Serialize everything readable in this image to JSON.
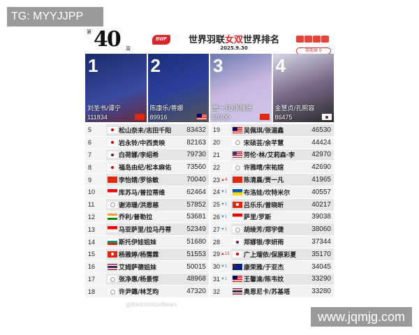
{
  "watermarks": {
    "top_left": "TG: MYYJJPP",
    "bottom_right": "www.jqmjg.com",
    "credit": "@BadmintonNews"
  },
  "header": {
    "week_prefix": "第",
    "week": "40",
    "week_suffix": "周",
    "logo": "BWF",
    "title_pre": "世界羽联",
    "title_em": "女双",
    "title_post": "世界排名",
    "date": "2025.9.30",
    "search_label": "羽毛球"
  },
  "colors": {
    "accent": "#d9262c",
    "up": "#d9262c",
    "down": "#3a8fd0"
  },
  "top4": [
    {
      "rank": "1",
      "names": "刘圣书/谭宁",
      "points": "111834",
      "flag": "CHN",
      "bg": "linear-gradient(160deg,#1b2a6b,#3a4aa0 60%,#6a2a3a)"
    },
    {
      "rank": "2",
      "names": "陈康乐/蒂娜",
      "points": "89916",
      "flag": "MAS",
      "bg": "linear-gradient(160deg,#1b2e7a,#2a3f9a 50%,#555 100%)"
    },
    {
      "rank": "3",
      "names": "贾一凡/张殊贤",
      "points": "88700",
      "flag": "CHN",
      "bg": "linear-gradient(160deg,#6a7ab0,#c8b8e0 50%,#d0c8e8)"
    },
    {
      "rank": "4",
      "names": "金慧贞/孔熙容",
      "points": "86475",
      "flag": "KOR",
      "bg": "linear-gradient(160deg,#d8d8e8,#7a6a8a 50%,#2a2a2a)"
    }
  ],
  "left_rows": [
    {
      "rank": "5",
      "flag": "JPN",
      "names": "松山奈未/志田千阳",
      "points": "83432"
    },
    {
      "rank": "6",
      "flag": "JPN",
      "names": "岩永铃/中西贵映",
      "points": "82163"
    },
    {
      "rank": "7",
      "flag": "KOR",
      "names": "白荷娜/李绍希",
      "points": "79730"
    },
    {
      "rank": "8",
      "flag": "JPN",
      "names": "福岛由纪/松本麻佑",
      "points": "73560"
    },
    {
      "rank": "9",
      "flag": "CHN",
      "names": "李怡婧/罗徐敏",
      "points": "70040"
    },
    {
      "rank": "10",
      "flag": "INA",
      "names": "库苏马/普拉蒂维",
      "points": "62464"
    },
    {
      "rank": "11",
      "flag": "TPE",
      "names": "谢沛珊/洪恩慈",
      "points": "57852"
    },
    {
      "rank": "12",
      "flag": "IND",
      "names": "乔利/普勒拉",
      "points": "53681"
    },
    {
      "rank": "13",
      "flag": "INA",
      "names": "马亚萨里/拉马丹蒂",
      "points": "52349"
    },
    {
      "rank": "14",
      "flag": "BUL",
      "names": "斯托伊娃姐妹",
      "points": "51680"
    },
    {
      "rank": "15",
      "flag": "HKG",
      "names": "杨雅婷/杨霈霖",
      "points": "51553"
    },
    {
      "rank": "16",
      "flag": "THA",
      "names": "艾姆萨德姐妹",
      "points": "50015"
    },
    {
      "rank": "17",
      "flag": "TPE",
      "names": "张净惠/杨景惇",
      "points": "48968"
    },
    {
      "rank": "18",
      "flag": "TPE",
      "names": "许尹鏸/林芝昀",
      "points": "47320"
    }
  ],
  "right_rows": [
    {
      "rank": "19",
      "flag": "MAS",
      "names": "吴佩琪/张湄鑫",
      "points": "46530"
    },
    {
      "rank": "20",
      "flag": "TPE",
      "names": "宋硕芸/余芊慧",
      "points": "44424"
    },
    {
      "rank": "21",
      "flag": "USA",
      "names": "劳伦·林/艾莉森·李",
      "points": "42970"
    },
    {
      "rank": "22",
      "flag": "TPE",
      "names": "许雅晴/宋祐媗",
      "points": "42690"
    },
    {
      "rank": "23",
      "change": "▲4",
      "dir": "up",
      "flag": "CHN",
      "names": "陈清晨/贾一凡",
      "points": "41965"
    },
    {
      "rank": "24",
      "change": "▼1",
      "dir": "dn",
      "flag": "UKR",
      "names": "布洛娃/坎特米尔",
      "points": "40557"
    },
    {
      "rank": "25",
      "change": "▼1",
      "dir": "dn",
      "flag": "HKG",
      "names": "吕乐乐/曾晓昕",
      "points": "40217"
    },
    {
      "rank": "26",
      "change": "▼1",
      "dir": "dn",
      "flag": "INA",
      "names": "萨里/罗斯",
      "points": "39038"
    },
    {
      "rank": "27",
      "change": "▼1",
      "dir": "dn",
      "flag": "TPE",
      "names": "胡绫芳/郑宇倢",
      "points": "38060"
    },
    {
      "rank": "28",
      "flag": "KOR",
      "names": "郑娜银/李妍雨",
      "points": "37344"
    },
    {
      "rank": "29",
      "change": "▲13",
      "dir": "up",
      "flag": "JPN",
      "names": "广上瑠依/保原彩夏",
      "points": "35170"
    },
    {
      "rank": "30",
      "change": "▼1",
      "dir": "dn",
      "flag": "AUS",
      "names": "康荣雅/于亚杰",
      "points": "34045"
    },
    {
      "rank": "31",
      "change": "▼1",
      "dir": "dn",
      "flag": "MAS",
      "names": "王馨渝/陈韦妏",
      "points": "33290"
    },
    {
      "rank": "32",
      "flag": "THA",
      "names": "奥恩尼卡/苏基塔",
      "points": "33280"
    }
  ]
}
